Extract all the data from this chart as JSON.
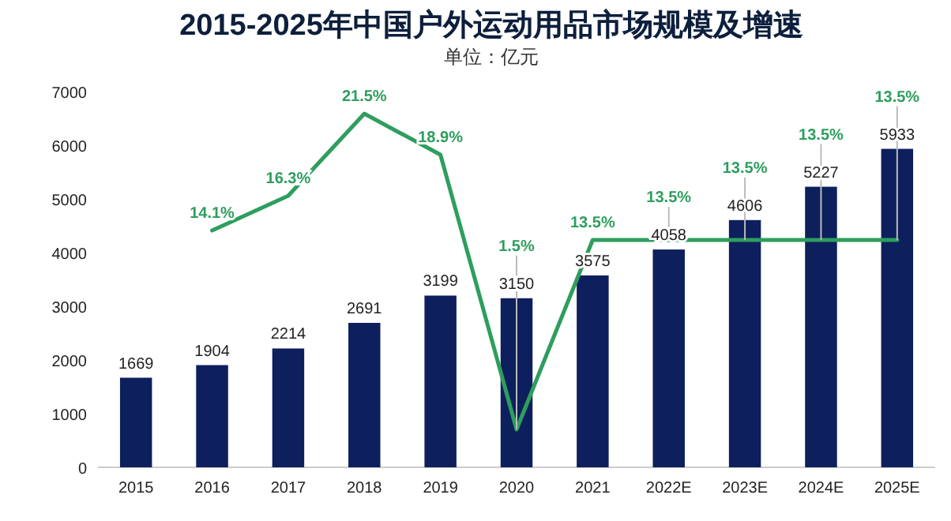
{
  "chart_data": {
    "type": "bar",
    "title": "2015-2025年中国户外运动用品市场规模及增速",
    "subtitle": "单位：亿元",
    "categories": [
      "2015",
      "2016",
      "2017",
      "2018",
      "2019",
      "2020",
      "2021",
      "2022E",
      "2023E",
      "2024E",
      "2025E"
    ],
    "ylim": [
      0,
      7000
    ],
    "yticks": [
      0,
      1000,
      2000,
      3000,
      4000,
      5000,
      6000,
      7000
    ],
    "grid": false,
    "data_labels": true,
    "series": [
      {
        "color": "#0d1f5c",
        "values": [
          1669,
          1904,
          2214,
          2691,
          3199,
          3150,
          3575,
          4058,
          4606,
          5227,
          5933
        ]
      },
      {
        "type": "line",
        "axis": "y2",
        "color": "#2e9e5e",
        "values": [
          null,
          14.1,
          16.3,
          21.5,
          18.9,
          1.5,
          13.5,
          13.5,
          13.5,
          13.5,
          13.5
        ],
        "value_labels": [
          null,
          "14.1%",
          "16.3%",
          "21.5%",
          "18.9%",
          "1.5%",
          "13.5%",
          "13.5%",
          "13.5%",
          "13.5%",
          "13.5%"
        ]
      }
    ]
  }
}
